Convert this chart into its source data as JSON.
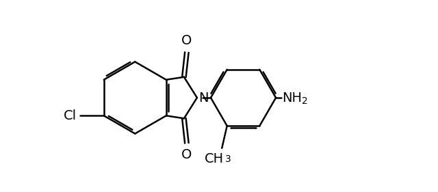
{
  "background_color": "#ffffff",
  "line_color": "#000000",
  "line_width": 1.8,
  "font_size_labels": 14,
  "font_size_subscript": 10,
  "xlim": [
    0.0,
    10.5
  ],
  "ylim": [
    0.5,
    6.0
  ]
}
